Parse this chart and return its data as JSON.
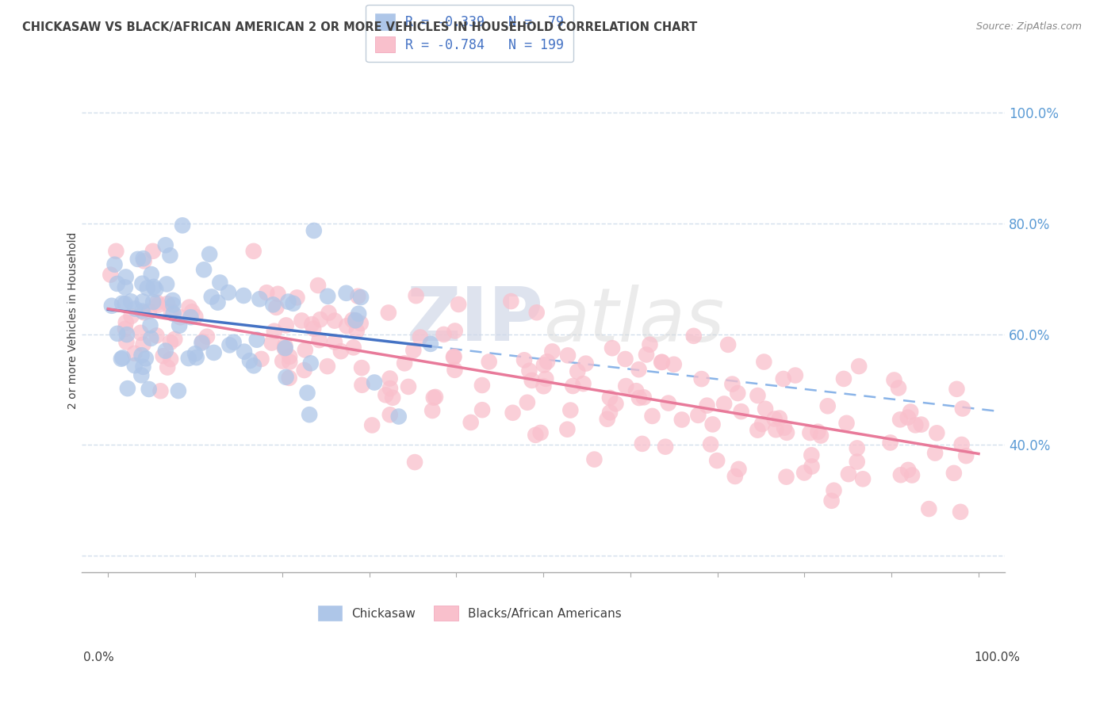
{
  "title": "CHICKASAW VS BLACK/AFRICAN AMERICAN 2 OR MORE VEHICLES IN HOUSEHOLD CORRELATION CHART",
  "source": "Source: ZipAtlas.com",
  "ylabel": "2 or more Vehicles in Household",
  "legend_entries": [
    {
      "label": "R = -0.339   N =  79",
      "color": "#aec6e8"
    },
    {
      "label": "R = -0.784   N = 199",
      "color": "#f4b8c8"
    }
  ],
  "blue_scatter_color": "#aec6e8",
  "pink_scatter_color": "#f9c0cc",
  "blue_line_color": "#4472c4",
  "pink_line_color": "#e87a9a",
  "dashed_line_color": "#8ab4e8",
  "watermark_text": "ZIPAtlas",
  "watermark_color": "#d8d8d8",
  "background_color": "#ffffff",
  "grid_color": "#c8d8e8",
  "title_color": "#404040",
  "ytick_color": "#5b9bd5",
  "source_color": "#888888",
  "R_blue": -0.339,
  "N_blue": 79,
  "R_pink": -0.784,
  "N_pink": 199,
  "blue_x_intercept": 65.0,
  "blue_slope": -0.28,
  "pink_x_intercept": 65.0,
  "pink_slope": -0.28,
  "xlim": [
    -3,
    103
  ],
  "ylim": [
    17,
    108
  ]
}
